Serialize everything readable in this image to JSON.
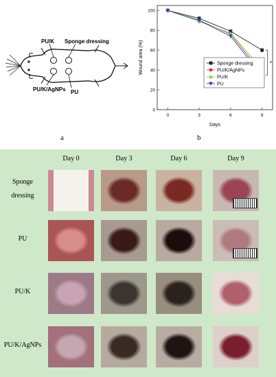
{
  "panel_a": {
    "labels": {
      "pu_k": "PU/K",
      "sponge": "Sponge dressing",
      "pu_k_agnps": "PU/K/AgNPs",
      "pu": "PU"
    },
    "letter": "a"
  },
  "panel_b": {
    "letter": "b",
    "significance": "*"
  },
  "chart_data": {
    "type": "line",
    "x": [
      0,
      3,
      6,
      9
    ],
    "xlabel": "Days",
    "ylabel": "Wound area (%)",
    "xlim": [
      -1,
      10
    ],
    "ylim": [
      0,
      105
    ],
    "xticks": [
      "0",
      "3",
      "6",
      "9"
    ],
    "yticks": [
      "0",
      "20",
      "40",
      "60",
      "80",
      "100"
    ],
    "legend_position": "right",
    "series": [
      {
        "name": "Sponge dressing",
        "values": [
          100,
          92,
          79,
          60
        ],
        "color": "#222222",
        "marker": "square"
      },
      {
        "name": "PU/K/AgNPs",
        "values": [
          100,
          90,
          76,
          37
        ],
        "color": "#e0303a",
        "marker": "circle"
      },
      {
        "name": "PU/K",
        "values": [
          100,
          89,
          77,
          41
        ],
        "color": "#7ad33a",
        "marker": "triangle-up"
      },
      {
        "name": "PU",
        "values": [
          100,
          90,
          74,
          34
        ],
        "color": "#2a3fc8",
        "marker": "triangle-down"
      }
    ]
  },
  "grid": {
    "columns": [
      "Day 0",
      "Day 3",
      "Day 6",
      "Day 9"
    ],
    "rows": [
      {
        "label_line1": "Sponge",
        "label_line2": "dressing"
      },
      {
        "label_line1": "PU",
        "label_line2": ""
      },
      {
        "label_line1": "PU/K",
        "label_line2": ""
      },
      {
        "label_line1": "PU/K/AgNPs",
        "label_line2": ""
      }
    ]
  }
}
